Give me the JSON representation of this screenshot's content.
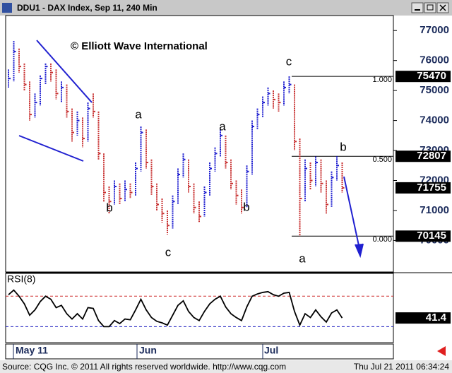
{
  "window_title": "DDU1 - DAX Index, Sep 11, 240 Min",
  "footer": {
    "left": "Source: CQG Inc. © 2011 All rights reserved worldwide. http://www.cqg.com",
    "right": "Thu Jul 21 2011 06:34:24"
  },
  "chart_data": [
    {
      "type": "hlc",
      "annotation": "© Elliott Wave International",
      "wave_labels": [
        "b",
        "a",
        "c",
        "a",
        "b",
        "c",
        "a",
        "b"
      ],
      "up_color": "#1f1fd0",
      "down_color": "#c83232",
      "high": [
        75700,
        76650,
        76400,
        75900,
        75300,
        74900,
        75500,
        75900,
        75900,
        75700,
        75300,
        75200,
        74400,
        74300,
        74100,
        74600,
        74900,
        74300,
        72900,
        71800,
        72000,
        71900,
        72000,
        71900,
        72600,
        73800,
        73700,
        72700,
        71900,
        71400,
        71000,
        71500,
        72400,
        72900,
        72700,
        71900,
        71300,
        71800,
        72600,
        73100,
        73700,
        73500,
        72700,
        72000,
        71700,
        72500,
        74000,
        74400,
        74800,
        75100,
        75000,
        74900,
        75300,
        75470,
        75200,
        73400,
        72700,
        72600,
        72800,
        72700,
        72000,
        72300,
        72807,
        72600
      ],
      "low": [
        75100,
        75300,
        75600,
        75000,
        74000,
        74100,
        74500,
        75200,
        75300,
        74700,
        74600,
        74100,
        73300,
        73500,
        73100,
        73300,
        74100,
        72700,
        71300,
        70900,
        71200,
        71200,
        71300,
        71400,
        71500,
        72300,
        72400,
        71500,
        71000,
        70600,
        70200,
        70400,
        71200,
        72100,
        71600,
        70900,
        70600,
        70800,
        71500,
        72300,
        72800,
        72400,
        71700,
        71200,
        70900,
        71100,
        72200,
        73700,
        74100,
        74500,
        74400,
        74300,
        74500,
        74900,
        73000,
        70145,
        71300,
        71700,
        71800,
        71600,
        70900,
        71100,
        72000,
        71600
      ],
      "close": [
        75400,
        76300,
        75800,
        75200,
        74200,
        74600,
        75400,
        75800,
        75600,
        74900,
        75100,
        74300,
        73600,
        74000,
        73400,
        74400,
        74300,
        72900,
        71600,
        71300,
        71800,
        71400,
        71700,
        71600,
        72400,
        73600,
        72600,
        71800,
        71200,
        70900,
        70500,
        71300,
        72200,
        72700,
        71800,
        71100,
        70800,
        71600,
        72400,
        72900,
        73500,
        72600,
        71900,
        71500,
        71100,
        72300,
        73800,
        74200,
        74600,
        74900,
        74700,
        74600,
        75100,
        75200,
        73300,
        71400,
        72400,
        72000,
        72600,
        71900,
        71200,
        72100,
        72500,
        71755
      ],
      "ylim": [
        68950,
        77500
      ],
      "yticks": [
        77000,
        76000,
        75000,
        74000,
        73000,
        72000,
        71000,
        70000
      ],
      "price_labels": [
        75470,
        72807,
        71755,
        70145
      ],
      "fib_levels": [
        {
          "value": 75470,
          "label": "1.000"
        },
        {
          "value": 72807,
          "label": "0.500"
        },
        {
          "value": 70145,
          "label": "0.000"
        }
      ],
      "x_labels": [
        "May 11",
        "Jun",
        "Jul"
      ]
    },
    {
      "type": "line",
      "title": "RSI(8)",
      "color": "#000000",
      "values": [
        72,
        78,
        70,
        60,
        45,
        52,
        63,
        70,
        66,
        55,
        58,
        47,
        40,
        47,
        40,
        55,
        54,
        38,
        30,
        30,
        38,
        34,
        40,
        39,
        52,
        66,
        52,
        42,
        37,
        35,
        32,
        45,
        58,
        64,
        50,
        42,
        38,
        50,
        60,
        66,
        70,
        56,
        47,
        42,
        38,
        56,
        70,
        73,
        75,
        76,
        72,
        70,
        74,
        75,
        50,
        32,
        47,
        42,
        52,
        43,
        36,
        48,
        52,
        41.4
      ],
      "ylim": [
        9,
        100
      ],
      "levels": [
        {
          "value": 70,
          "color": "#d03030"
        },
        {
          "value": 30,
          "color": "#2020c0"
        }
      ]
    }
  ]
}
